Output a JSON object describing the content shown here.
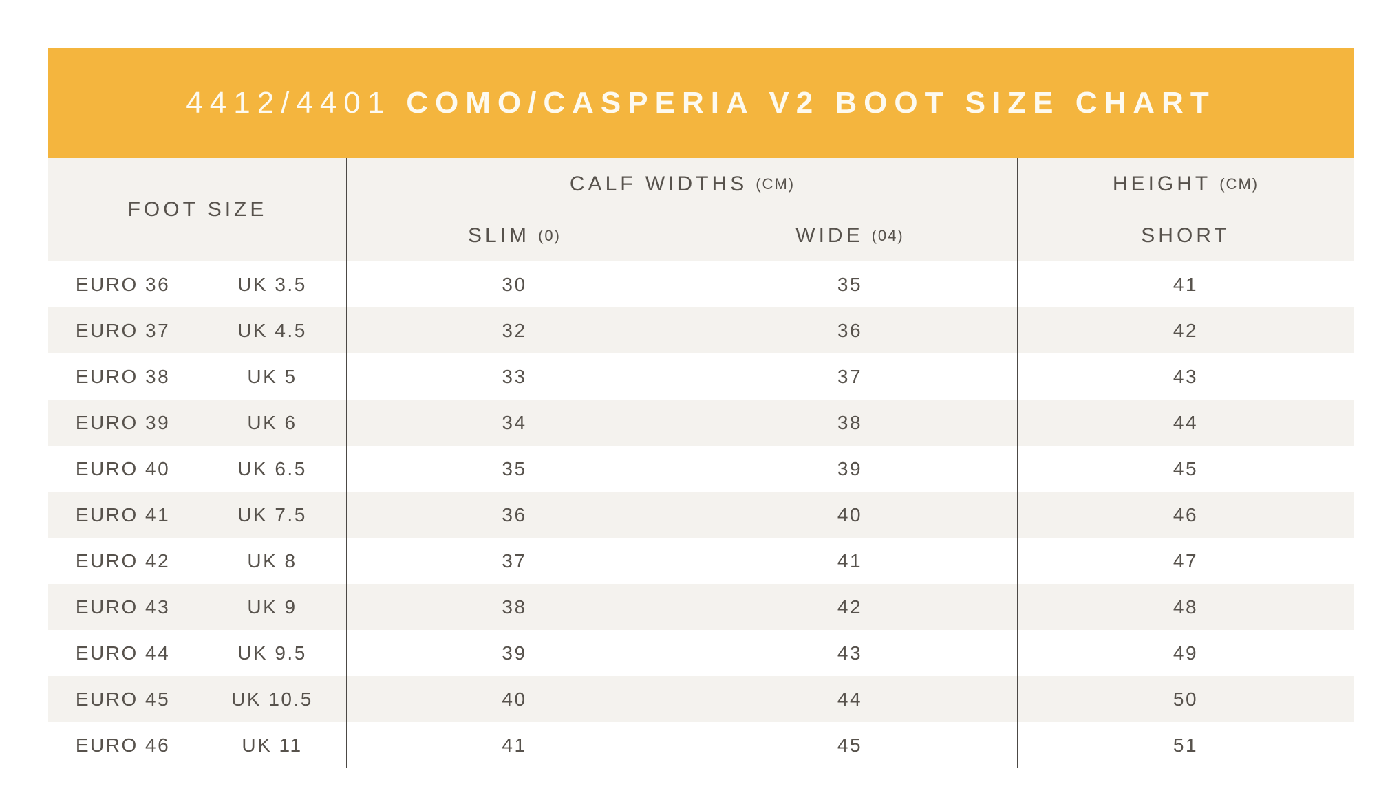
{
  "title": {
    "code": "4412/4401",
    "name": "COMO/CASPERIA V2 BOOT SIZE CHART"
  },
  "header": {
    "foot_size": "FOOT SIZE",
    "calf_widths": "CALF WIDTHS",
    "calf_widths_unit": "(CM)",
    "slim": "SLIM",
    "slim_code": "(0)",
    "wide": "WIDE",
    "wide_code": "(04)",
    "height": "HEIGHT",
    "height_unit": "(CM)",
    "short": "SHORT"
  },
  "rows": [
    {
      "euro": "EURO 36",
      "uk": "UK 3.5",
      "slim": "30",
      "wide": "35",
      "height": "41"
    },
    {
      "euro": "EURO 37",
      "uk": "UK 4.5",
      "slim": "32",
      "wide": "36",
      "height": "42"
    },
    {
      "euro": "EURO 38",
      "uk": "UK 5",
      "slim": "33",
      "wide": "37",
      "height": "43"
    },
    {
      "euro": "EURO 39",
      "uk": "UK 6",
      "slim": "34",
      "wide": "38",
      "height": "44"
    },
    {
      "euro": "EURO 40",
      "uk": "UK 6.5",
      "slim": "35",
      "wide": "39",
      "height": "45"
    },
    {
      "euro": "EURO 41",
      "uk": "UK 7.5",
      "slim": "36",
      "wide": "40",
      "height": "46"
    },
    {
      "euro": "EURO 42",
      "uk": "UK 8",
      "slim": "37",
      "wide": "41",
      "height": "47"
    },
    {
      "euro": "EURO 43",
      "uk": "UK 9",
      "slim": "38",
      "wide": "42",
      "height": "48"
    },
    {
      "euro": "EURO 44",
      "uk": "UK 9.5",
      "slim": "39",
      "wide": "43",
      "height": "49"
    },
    {
      "euro": "EURO 45",
      "uk": "UK 10.5",
      "slim": "40",
      "wide": "44",
      "height": "50"
    },
    {
      "euro": "EURO 46",
      "uk": "UK 11",
      "slim": "41",
      "wide": "45",
      "height": "51"
    }
  ],
  "colors": {
    "banner": "#f4b53e",
    "title_text": "#fdfaf0",
    "beige": "#f4f2ee",
    "text": "#57524c",
    "divider": "#4c4945"
  }
}
